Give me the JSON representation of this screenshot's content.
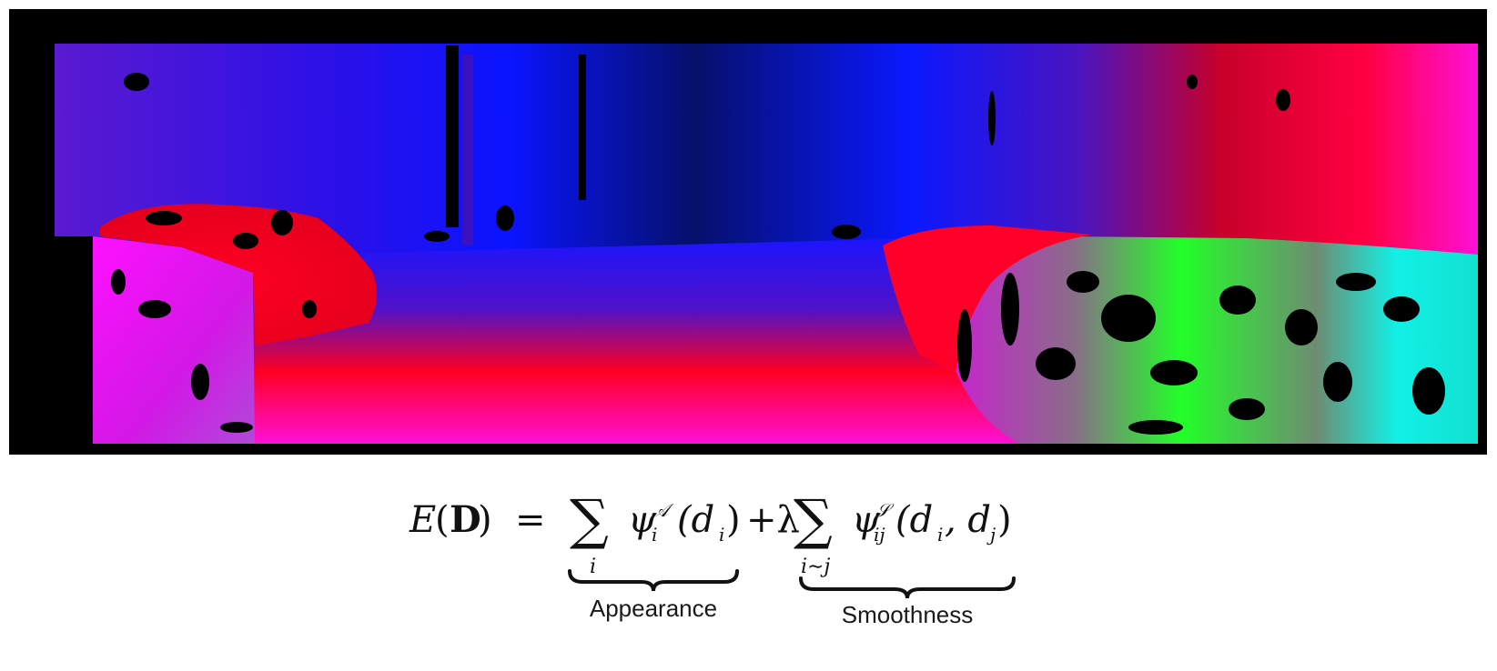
{
  "figure": {
    "image": {
      "description": "colorized depth / disparity map with black invalid-pixel holes",
      "colors": {
        "frame": "#000000",
        "violet": "#5a1ad0",
        "blue": "#0a14ff",
        "dark_blue": "#05106a",
        "red": "#ff0022",
        "crimson": "#c8002a",
        "magenta": "#ff10d8",
        "pink": "#ff1670",
        "green": "#22ff28",
        "gray_green": "#6e8c72",
        "cyan": "#12f0e6"
      }
    },
    "equation": {
      "lhs": "E(D)",
      "equals": "=",
      "sum1_subscript": "i",
      "term1": "ψ_i^A(d_i)",
      "plus_lambda": "+λ",
      "sum2_subscript": "i∼j",
      "term2": "ψ_ij^S(d_i, d_j)",
      "brace_labels": {
        "appearance": "Appearance",
        "smoothness": "Smoothness"
      }
    }
  }
}
